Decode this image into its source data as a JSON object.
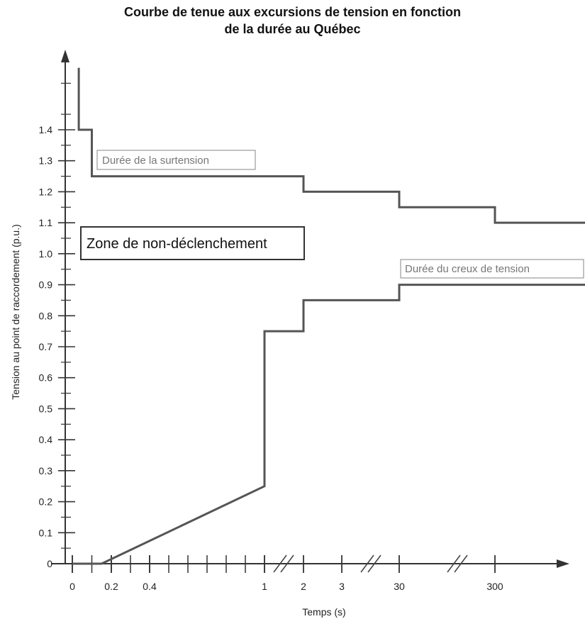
{
  "chart_data": {
    "type": "line",
    "title": "Courbe de tenue aux excursions de tension en fonction",
    "subtitle": "de la durée au Québec",
    "xlabel": "Temps (s)",
    "ylabel": "Tension au point de raccordement (p.u.)",
    "x_tick_labels": [
      "0",
      "0.2",
      "0.4",
      "1",
      "2",
      "3",
      "30",
      "300"
    ],
    "x_tick_values": [
      0,
      0.2,
      0.4,
      1,
      2,
      3,
      30,
      300
    ],
    "y_tick_labels": [
      "0",
      "0.1",
      "0.2",
      "0.3",
      "0.4",
      "0.5",
      "0.6",
      "0.7",
      "0.8",
      "0.9",
      "1.0",
      "1.1",
      "1.2",
      "1.3",
      "1.4"
    ],
    "y_tick_values": [
      0,
      0.1,
      0.2,
      0.3,
      0.4,
      0.5,
      0.6,
      0.7,
      0.8,
      0.9,
      1.0,
      1.1,
      1.2,
      1.3,
      1.4
    ],
    "ylim": [
      0,
      1.6
    ],
    "grid": false,
    "series": [
      {
        "name": "Durée de la surtension",
        "points": [
          [
            0.033,
            1.6
          ],
          [
            0.033,
            1.4
          ],
          [
            0.1,
            1.4
          ],
          [
            0.1,
            1.25
          ],
          [
            2,
            1.25
          ],
          [
            2,
            1.2
          ],
          [
            30,
            1.2
          ],
          [
            30,
            1.15
          ],
          [
            300,
            1.15
          ],
          [
            300,
            1.1
          ],
          [
            600,
            1.1
          ]
        ]
      },
      {
        "name": "Durée du creux de tension",
        "points": [
          [
            0,
            0
          ],
          [
            0.15,
            0
          ],
          [
            1,
            0.25
          ],
          [
            1,
            0.75
          ],
          [
            2,
            0.75
          ],
          [
            2,
            0.85
          ],
          [
            30,
            0.85
          ],
          [
            30,
            0.9
          ],
          [
            600,
            0.9
          ]
        ]
      }
    ],
    "annotations": [
      {
        "name": "zone-label",
        "text": "Zone de non-déclenchement"
      }
    ],
    "axis_breaks": [
      "between 1 and 2",
      "between 3 and 30",
      "between 30 and 300"
    ]
  }
}
